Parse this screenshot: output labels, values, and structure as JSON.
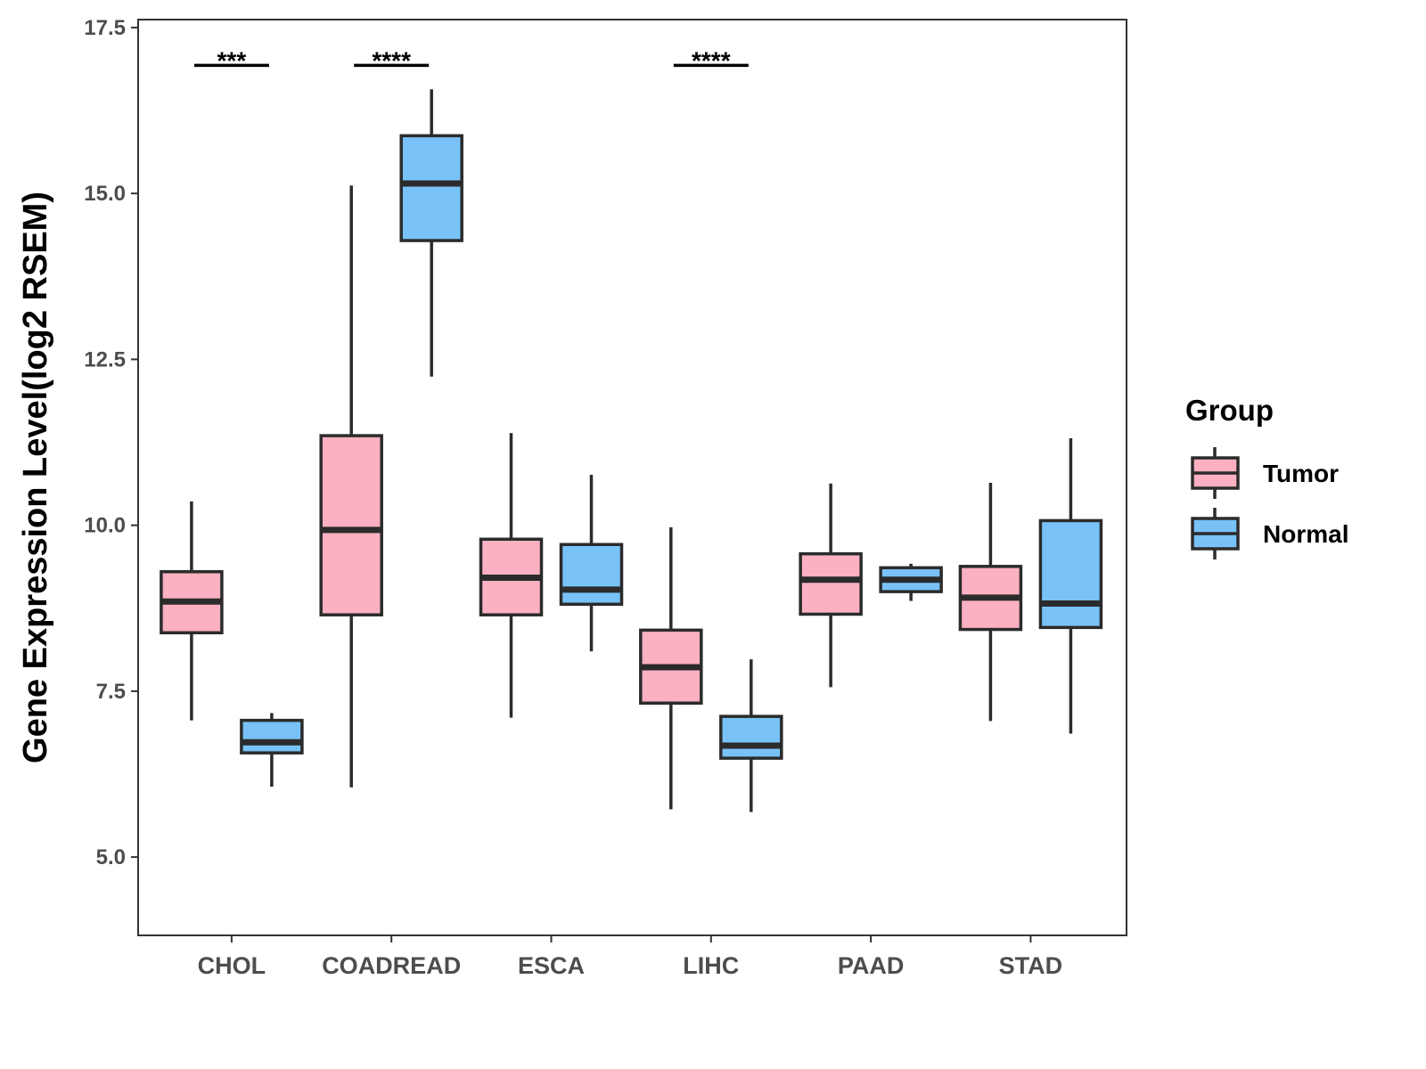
{
  "chart_data": {
    "type": "box",
    "title": "",
    "xlabel": "",
    "ylabel": "Gene Expression Level(log2 RSEM)",
    "ylim": [
      3.82,
      17.62
    ],
    "yticks": [
      "5.0",
      "7.5",
      "10.0",
      "12.5",
      "15.0",
      "17.5"
    ],
    "ytick_values": [
      5.0,
      7.5,
      10.0,
      12.5,
      15.0,
      17.5
    ],
    "grid": false,
    "categories": [
      "CHOL",
      "COADREAD",
      "ESCA",
      "LIHC",
      "PAAD",
      "STAD"
    ],
    "legend": {
      "title": "Group",
      "placement": "right"
    },
    "series": [
      {
        "name": "Tumor",
        "color": "#FBB1C2",
        "boxes": [
          {
            "min": 7.06,
            "q1": 8.38,
            "median": 8.85,
            "q3": 9.3,
            "max": 10.36
          },
          {
            "min": 6.05,
            "q1": 8.65,
            "median": 9.93,
            "q3": 11.35,
            "max": 15.12
          },
          {
            "min": 7.1,
            "q1": 8.65,
            "median": 9.21,
            "q3": 9.79,
            "max": 11.39
          },
          {
            "min": 5.72,
            "q1": 7.32,
            "median": 7.86,
            "q3": 8.42,
            "max": 9.97
          },
          {
            "min": 7.56,
            "q1": 8.66,
            "median": 9.18,
            "q3": 9.57,
            "max": 10.63
          },
          {
            "min": 7.05,
            "q1": 8.43,
            "median": 8.91,
            "q3": 9.38,
            "max": 10.64
          }
        ]
      },
      {
        "name": "Normal",
        "color": "#78C2F8",
        "boxes": [
          {
            "min": 6.06,
            "q1": 6.57,
            "median": 6.73,
            "q3": 7.06,
            "max": 7.17
          },
          {
            "min": 12.24,
            "q1": 14.29,
            "median": 15.15,
            "q3": 15.87,
            "max": 16.57
          },
          {
            "min": 8.1,
            "q1": 8.81,
            "median": 9.03,
            "q3": 9.71,
            "max": 10.76
          },
          {
            "min": 5.68,
            "q1": 6.49,
            "median": 6.68,
            "q3": 7.12,
            "max": 7.98
          },
          {
            "min": 8.86,
            "q1": 9.0,
            "median": 9.18,
            "q3": 9.36,
            "max": 9.42
          },
          {
            "min": 6.86,
            "q1": 8.46,
            "median": 8.82,
            "q3": 10.07,
            "max": 11.31
          }
        ]
      }
    ],
    "annotations": [
      {
        "category": "CHOL",
        "label": "***",
        "y": 16.93
      },
      {
        "category": "COADREAD",
        "label": "****",
        "y": 16.93
      },
      {
        "category": "LIHC",
        "label": "****",
        "y": 16.93
      }
    ]
  }
}
